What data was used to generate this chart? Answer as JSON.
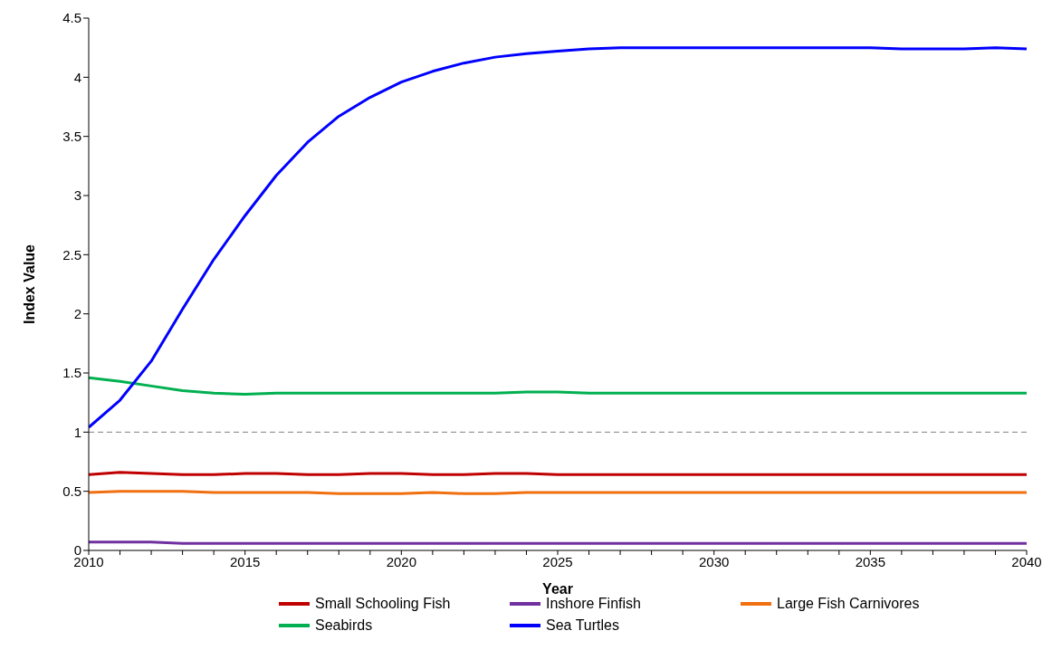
{
  "chart_data": {
    "type": "line",
    "xlabel": "Year",
    "ylabel": "Index Value",
    "x": [
      2010,
      2011,
      2012,
      2013,
      2014,
      2015,
      2016,
      2017,
      2018,
      2019,
      2020,
      2021,
      2022,
      2023,
      2024,
      2025,
      2026,
      2027,
      2028,
      2029,
      2030,
      2031,
      2032,
      2033,
      2034,
      2035,
      2036,
      2037,
      2038,
      2039,
      2040
    ],
    "series": [
      {
        "name": "Small Schooling Fish",
        "color": "#c00000",
        "values": [
          0.64,
          0.66,
          0.65,
          0.64,
          0.64,
          0.65,
          0.65,
          0.64,
          0.64,
          0.65,
          0.65,
          0.64,
          0.64,
          0.65,
          0.65,
          0.64,
          0.64,
          0.64,
          0.64,
          0.64,
          0.64,
          0.64,
          0.64,
          0.64,
          0.64,
          0.64,
          0.64,
          0.64,
          0.64,
          0.64,
          0.64
        ]
      },
      {
        "name": "Inshore Finfish",
        "color": "#7030a0",
        "values": [
          0.07,
          0.07,
          0.07,
          0.06,
          0.06,
          0.06,
          0.06,
          0.06,
          0.06,
          0.06,
          0.06,
          0.06,
          0.06,
          0.06,
          0.06,
          0.06,
          0.06,
          0.06,
          0.06,
          0.06,
          0.06,
          0.06,
          0.06,
          0.06,
          0.06,
          0.06,
          0.06,
          0.06,
          0.06,
          0.06,
          0.06
        ]
      },
      {
        "name": "Large Fish Carnivores",
        "color": "#f07010",
        "values": [
          0.49,
          0.5,
          0.5,
          0.5,
          0.49,
          0.49,
          0.49,
          0.49,
          0.48,
          0.48,
          0.48,
          0.49,
          0.48,
          0.48,
          0.49,
          0.49,
          0.49,
          0.49,
          0.49,
          0.49,
          0.49,
          0.49,
          0.49,
          0.49,
          0.49,
          0.49,
          0.49,
          0.49,
          0.49,
          0.49,
          0.49
        ]
      },
      {
        "name": "Seabirds",
        "color": "#00b050",
        "values": [
          1.46,
          1.43,
          1.39,
          1.35,
          1.33,
          1.32,
          1.33,
          1.33,
          1.33,
          1.33,
          1.33,
          1.33,
          1.33,
          1.33,
          1.34,
          1.34,
          1.33,
          1.33,
          1.33,
          1.33,
          1.33,
          1.33,
          1.33,
          1.33,
          1.33,
          1.33,
          1.33,
          1.33,
          1.33,
          1.33,
          1.33
        ]
      },
      {
        "name": "Sea Turtles",
        "color": "#0000ff",
        "values": [
          1.04,
          1.27,
          1.6,
          2.04,
          2.46,
          2.83,
          3.17,
          3.45,
          3.67,
          3.83,
          3.96,
          4.05,
          4.12,
          4.17,
          4.2,
          4.22,
          4.24,
          4.25,
          4.25,
          4.25,
          4.25,
          4.25,
          4.25,
          4.25,
          4.25,
          4.25,
          4.24,
          4.24,
          4.24,
          4.25,
          4.24
        ]
      }
    ],
    "xlim": [
      2010,
      2040
    ],
    "xticks": [
      2010,
      {
        "value": 2011,
        "label": null
      },
      {
        "value": 2012,
        "label": null
      },
      {
        "value": 2013,
        "label": null
      },
      {
        "value": 2014,
        "label": null
      },
      2015,
      {
        "value": 2016,
        "label": null
      },
      {
        "value": 2017,
        "label": null
      },
      {
        "value": 2018,
        "label": null
      },
      {
        "value": 2019,
        "label": null
      },
      2020,
      {
        "value": 2021,
        "label": null
      },
      {
        "value": 2022,
        "label": null
      },
      {
        "value": 2023,
        "label": null
      },
      {
        "value": 2024,
        "label": null
      },
      2025,
      {
        "value": 2026,
        "label": null
      },
      {
        "value": 2027,
        "label": null
      },
      {
        "value": 2028,
        "label": null
      },
      {
        "value": 2029,
        "label": null
      },
      2030,
      {
        "value": 2031,
        "label": null
      },
      {
        "value": 2032,
        "label": null
      },
      {
        "value": 2033,
        "label": null
      },
      {
        "value": 2034,
        "label": null
      },
      2035,
      {
        "value": 2036,
        "label": null
      },
      {
        "value": 2037,
        "label": null
      },
      {
        "value": 2038,
        "label": null
      },
      {
        "value": 2039,
        "label": null
      },
      2040
    ],
    "ylim": [
      0,
      4.5
    ],
    "yticks": [
      0,
      0.5,
      1,
      1.5,
      2,
      2.5,
      3,
      3.5,
      4,
      4.5
    ],
    "ref_lines": [
      {
        "axis": "y",
        "value": 1,
        "color": "#808080",
        "line_style": "dashed"
      }
    ],
    "grid": false,
    "legend": "bottom",
    "marker": "none",
    "line_style": "solid"
  }
}
